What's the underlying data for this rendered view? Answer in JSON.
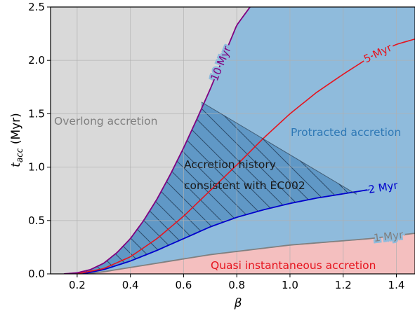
{
  "chart_data": {
    "type": "area",
    "title": "",
    "xlabel": "β",
    "ylabel_main": "t",
    "ylabel_sub": "acc",
    "ylabel_unit": " (Myr)",
    "xlim": [
      0.1,
      1.47
    ],
    "ylim": [
      0,
      2.5
    ],
    "xticks": [
      0.2,
      0.4,
      0.6,
      0.8,
      1.0,
      1.2,
      1.4
    ],
    "xtick_labels": [
      "0.2",
      "0.4",
      "0.6",
      "0.8",
      "1.0",
      "1.2",
      "1.4"
    ],
    "yticks": [
      0,
      0.5,
      1.0,
      1.5,
      2.0,
      2.5
    ],
    "ytick_labels": [
      "0.0",
      "0.5",
      "1.0",
      "1.5",
      "2.0",
      "2.5"
    ],
    "grid": true,
    "series": [
      {
        "name": "10 Myr",
        "color": "#800080",
        "x": [
          0.15,
          0.2,
          0.25,
          0.3,
          0.35,
          0.4,
          0.45,
          0.5,
          0.55,
          0.6,
          0.65,
          0.7,
          0.75,
          0.8,
          0.85
        ],
        "y": [
          0.0,
          0.01,
          0.04,
          0.1,
          0.2,
          0.33,
          0.5,
          0.7,
          0.93,
          1.18,
          1.45,
          1.73,
          2.03,
          2.33,
          2.5
        ]
      },
      {
        "name": "5 Myr",
        "color": "#e6141e",
        "x": [
          0.2,
          0.3,
          0.4,
          0.5,
          0.6,
          0.7,
          0.8,
          0.9,
          1.0,
          1.1,
          1.2,
          1.3,
          1.4,
          1.47
        ],
        "y": [
          0.0,
          0.05,
          0.16,
          0.33,
          0.54,
          0.78,
          1.02,
          1.27,
          1.5,
          1.7,
          1.87,
          2.03,
          2.15,
          2.2
        ]
      },
      {
        "name": "2 Myr",
        "color": "#0000cc",
        "x": [
          0.22,
          0.3,
          0.4,
          0.5,
          0.6,
          0.7,
          0.8,
          0.9,
          1.0,
          1.1,
          1.2,
          1.3
        ],
        "y": [
          0.0,
          0.04,
          0.12,
          0.22,
          0.33,
          0.44,
          0.53,
          0.6,
          0.66,
          0.71,
          0.75,
          0.79
        ]
      },
      {
        "name": "1 Myr",
        "color": "#808080",
        "x": [
          0.23,
          0.3,
          0.4,
          0.5,
          0.6,
          0.7,
          0.8,
          0.9,
          1.0,
          1.1,
          1.2,
          1.3,
          1.4,
          1.47
        ],
        "y": [
          0.0,
          0.02,
          0.06,
          0.1,
          0.14,
          0.18,
          0.21,
          0.24,
          0.27,
          0.29,
          0.31,
          0.33,
          0.36,
          0.38
        ]
      }
    ],
    "consistent_region": {
      "top_left": [
        0.667,
        1.61
      ],
      "top_right": [
        1.25,
        0.745
      ]
    },
    "region_labels": {
      "overlong": "Overlong accretion",
      "protracted": "Protracted accretion",
      "consistent_line1": "Accretion history",
      "consistent_line2": "consistent with EC002",
      "quasi": "Quasi instantaneous accretion"
    },
    "colors": {
      "overlong": "#d9d9d9",
      "protracted": "#8fbbdc",
      "consistent": "#5b95c3",
      "quasi": "#f4bfbf",
      "grid": "#b0b0b0",
      "overlong_text": "#808080",
      "protracted_text": "#2e78b5",
      "consistent_text": "#1a1a1a",
      "quasi_text": "#e6141e"
    }
  }
}
